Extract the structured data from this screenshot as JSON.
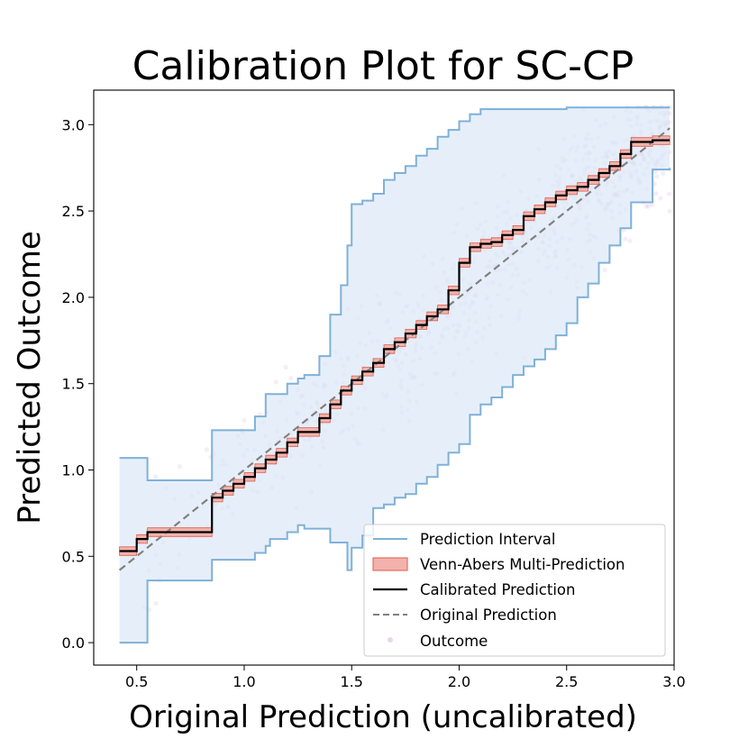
{
  "chart_data": {
    "type": "line",
    "title": "Calibration Plot for SC-CP",
    "xlabel": "Original Prediction (uncalibrated)",
    "ylabel": "Predicted Outcome",
    "xlim": [
      0.3,
      3.0
    ],
    "ylim": [
      -0.13,
      3.2
    ],
    "x_ticks": [
      0.5,
      1.0,
      1.5,
      2.0,
      2.5,
      3.0
    ],
    "x_tick_labels": [
      "0.5",
      "1.0",
      "1.5",
      "2.0",
      "2.5",
      "3.0"
    ],
    "y_ticks": [
      0.0,
      0.5,
      1.0,
      1.5,
      2.0,
      2.5,
      3.0
    ],
    "y_tick_labels": [
      "0.0",
      "0.5",
      "1.0",
      "1.5",
      "2.0",
      "2.5",
      "3.0"
    ],
    "grid": false,
    "legend_position": "lower-right",
    "colors": {
      "interval_line": "#7fb1d8",
      "interval_fill": "#dbe8f6",
      "band": "#e05a4e",
      "band_fill": "#f2b3ac",
      "calibrated": "#000000",
      "original": "#808080",
      "outcome": "#c79cd1"
    },
    "series": [
      {
        "name": "Prediction Interval",
        "style": "step-band",
        "x": [
          0.42,
          0.42,
          0.55,
          0.85,
          0.85,
          1.0,
          1.05,
          1.1,
          1.12,
          1.2,
          1.25,
          1.28,
          1.35,
          1.4,
          1.45,
          1.48,
          1.5,
          1.55,
          1.6,
          1.65,
          1.7,
          1.75,
          1.8,
          1.85,
          1.9,
          1.95,
          2.0,
          2.05,
          2.1,
          2.15,
          2.2,
          2.25,
          2.3,
          2.35,
          2.4,
          2.45,
          2.5,
          2.55,
          2.6,
          2.65,
          2.7,
          2.75,
          2.8,
          2.9,
          2.98
        ],
        "upper": [
          1.07,
          1.07,
          0.94,
          0.94,
          1.23,
          1.23,
          1.31,
          1.44,
          1.44,
          1.5,
          1.53,
          1.55,
          1.66,
          1.9,
          2.07,
          2.3,
          2.54,
          2.56,
          2.6,
          2.68,
          2.72,
          2.76,
          2.82,
          2.86,
          2.93,
          2.97,
          3.02,
          3.06,
          3.09,
          3.09,
          3.09,
          3.09,
          3.09,
          3.09,
          3.09,
          3.09,
          3.1,
          3.1,
          3.1,
          3.1,
          3.1,
          3.1,
          3.1,
          3.1,
          3.1
        ],
        "lower": [
          0.0,
          0.0,
          0.36,
          0.36,
          0.48,
          0.48,
          0.52,
          0.56,
          0.6,
          0.64,
          0.68,
          0.66,
          0.66,
          0.58,
          0.58,
          0.42,
          0.55,
          0.62,
          0.78,
          0.8,
          0.84,
          0.86,
          0.92,
          0.96,
          1.03,
          1.1,
          1.15,
          1.32,
          1.38,
          1.42,
          1.48,
          1.55,
          1.6,
          1.64,
          1.7,
          1.78,
          1.85,
          2.0,
          2.08,
          2.2,
          2.3,
          2.4,
          2.55,
          2.74,
          2.75
        ]
      },
      {
        "name": "Venn-Abers Multi-Prediction",
        "style": "band",
        "width": 0.025
      },
      {
        "name": "Calibrated Prediction",
        "style": "step",
        "x": [
          0.42,
          0.5,
          0.55,
          0.85,
          0.9,
          0.95,
          1.0,
          1.05,
          1.1,
          1.15,
          1.2,
          1.25,
          1.3,
          1.35,
          1.4,
          1.45,
          1.5,
          1.55,
          1.6,
          1.65,
          1.7,
          1.75,
          1.8,
          1.85,
          1.9,
          1.95,
          2.0,
          2.05,
          2.1,
          2.15,
          2.2,
          2.25,
          2.3,
          2.35,
          2.4,
          2.45,
          2.5,
          2.55,
          2.6,
          2.65,
          2.7,
          2.75,
          2.8,
          2.9,
          2.98
        ],
        "y": [
          0.53,
          0.6,
          0.64,
          0.84,
          0.88,
          0.92,
          0.96,
          1.01,
          1.06,
          1.1,
          1.16,
          1.22,
          1.22,
          1.3,
          1.38,
          1.46,
          1.52,
          1.57,
          1.62,
          1.7,
          1.74,
          1.79,
          1.84,
          1.89,
          1.93,
          2.04,
          2.2,
          2.29,
          2.31,
          2.32,
          2.36,
          2.39,
          2.47,
          2.51,
          2.55,
          2.59,
          2.62,
          2.64,
          2.68,
          2.72,
          2.76,
          2.83,
          2.9,
          2.91,
          2.91
        ]
      },
      {
        "name": "Original Prediction",
        "style": "dashed",
        "x": [
          0.42,
          2.98
        ],
        "y": [
          0.42,
          2.98
        ]
      },
      {
        "name": "Outcome",
        "style": "scatter",
        "count": 700,
        "spread": 0.45
      }
    ]
  }
}
